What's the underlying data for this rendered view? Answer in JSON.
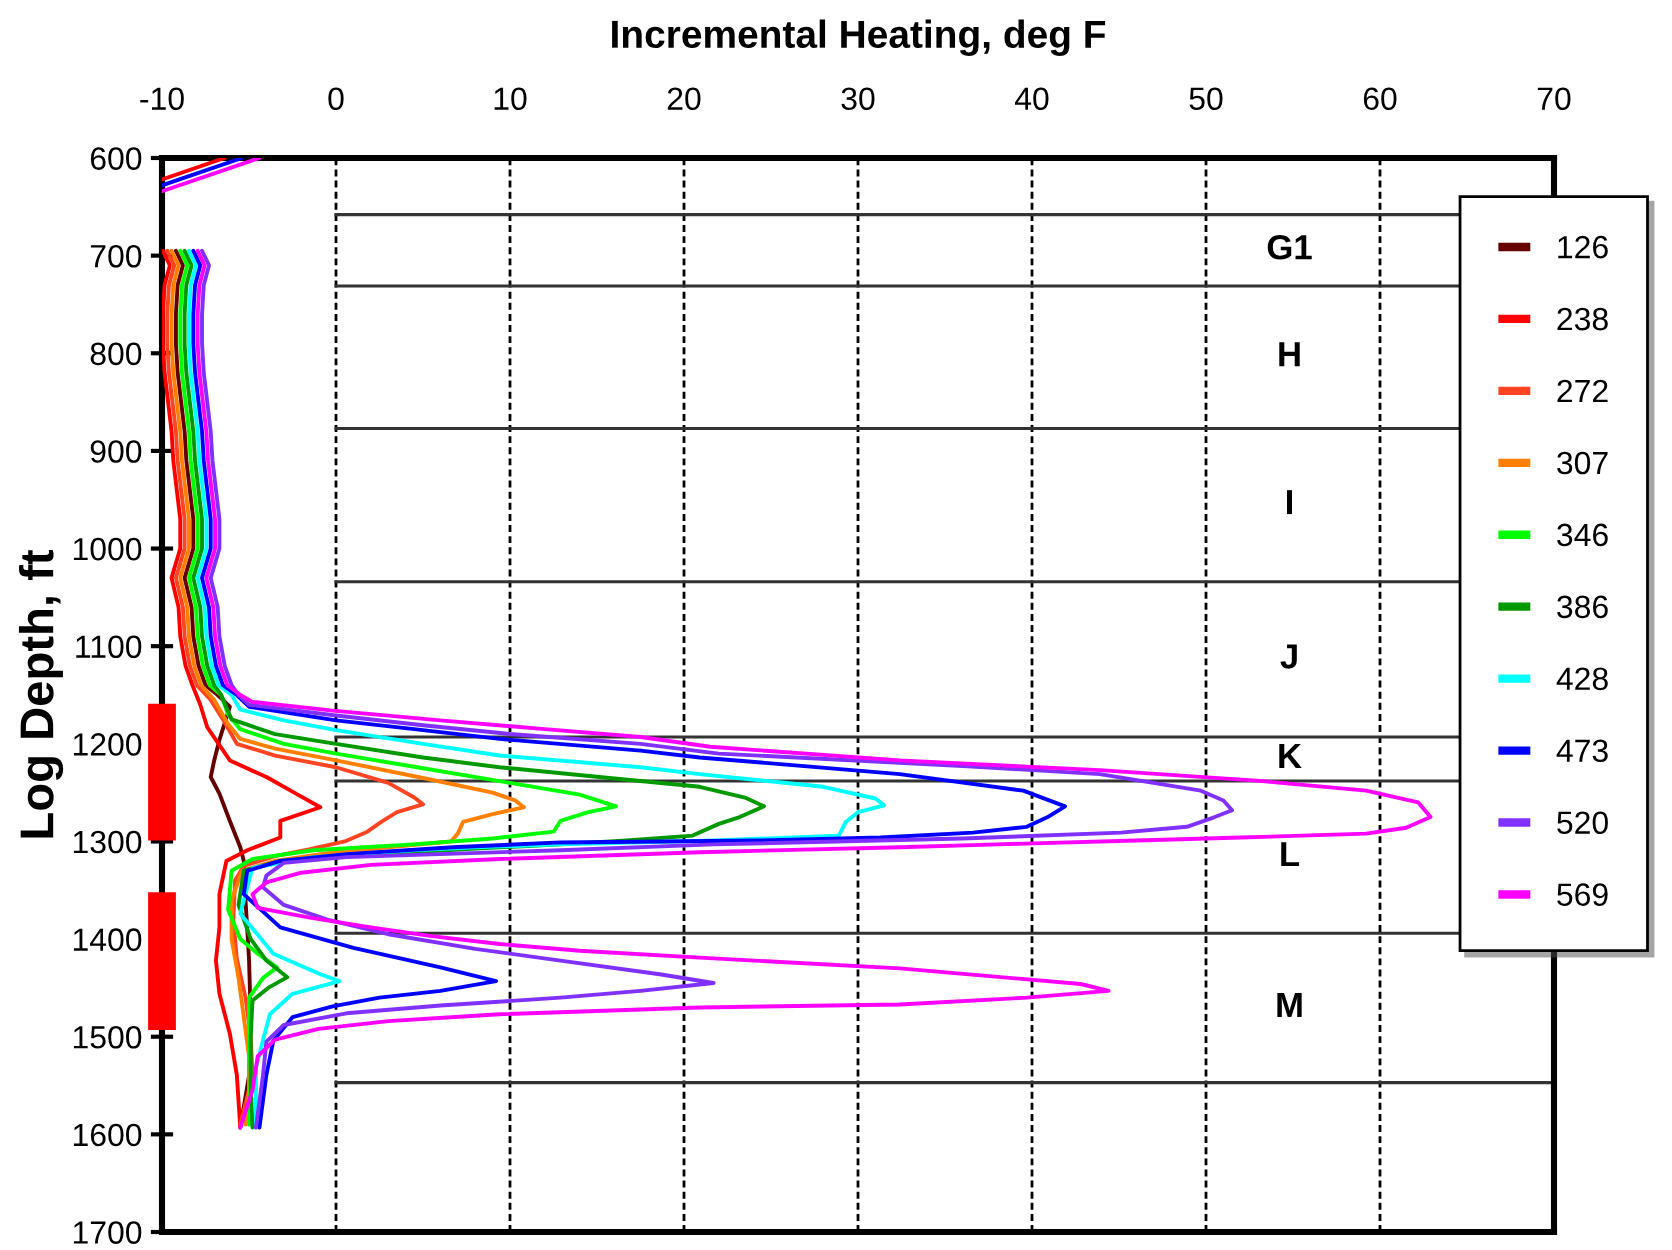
{
  "chart_data": {
    "type": "line",
    "xlabel": "Incremental Heating, deg F",
    "ylabel": "Log Depth, ft",
    "xlim": [
      -10,
      70
    ],
    "ylim": [
      1700,
      600
    ],
    "xticks": [
      -10,
      0,
      10,
      20,
      30,
      40,
      50,
      60,
      70
    ],
    "yticks": [
      600,
      700,
      800,
      900,
      1000,
      1100,
      1200,
      1300,
      1400,
      1500,
      1600,
      1700
    ],
    "grid": "x",
    "legend": "right",
    "ref_lines": [
      {
        "axis": "y",
        "value": 658
      },
      {
        "axis": "y",
        "value": 731
      },
      {
        "axis": "y",
        "value": 877
      },
      {
        "axis": "y",
        "value": 1034
      },
      {
        "axis": "y",
        "value": 1193
      },
      {
        "axis": "y",
        "value": 1238
      },
      {
        "axis": "y",
        "value": 1394
      },
      {
        "axis": "y",
        "value": 1547
      }
    ],
    "annotations": [
      "G1",
      "H",
      "I",
      "J",
      "K",
      "L",
      "M"
    ],
    "series": [
      {
        "name": "126",
        "color": "#660000",
        "x": [
          -9.2,
          -8.8,
          -9.1,
          -9.2,
          -9.2,
          -9.1,
          -8.9,
          -8.7,
          -8.6,
          -8.4,
          -8.2,
          -8.2,
          -8.7,
          -8.3,
          -8.2,
          -7.9,
          -7.5,
          -6.8,
          -6.1,
          -6.7,
          -7.0,
          -7.2,
          -6.7,
          -6.1,
          -5.5,
          -5.3,
          -5.2,
          -5.0,
          -4.9,
          -5.0,
          -5.5
        ],
        "values": [
          695,
          710,
          730,
          760,
          790,
          820,
          850,
          880,
          910,
          940,
          970,
          1000,
          1030,
          1060,
          1090,
          1120,
          1140,
          1150,
          1162,
          1196,
          1217,
          1234,
          1251,
          1279,
          1306,
          1320,
          1360,
          1420,
          1480,
          1540,
          1593
        ]
      },
      {
        "name": "238",
        "color": "#ff0000",
        "x": [
          -6.4,
          -10.0,
          null,
          -9.95,
          -9.55,
          -9.85,
          -9.95,
          -9.95,
          -9.85,
          -9.65,
          -9.45,
          -9.35,
          -9.15,
          -8.95,
          -8.95,
          -9.45,
          -9.05,
          -8.95,
          -8.65,
          -8.25,
          -7.8,
          -7.4,
          -6.1,
          -4.0,
          -2.3,
          -0.9,
          -3.2,
          -3.2,
          -5.1,
          -6.3,
          -6.7,
          -6.7,
          -6.9,
          -6.7,
          -6.1,
          -5.7,
          -5.5
        ],
        "values": [
          600,
          622,
          null,
          695,
          710,
          730,
          760,
          790,
          820,
          850,
          880,
          910,
          940,
          970,
          1000,
          1030,
          1060,
          1090,
          1120,
          1140,
          1160,
          1183,
          1217,
          1234,
          1251,
          1265,
          1279,
          1296,
          1309,
          1320,
          1354,
          1388,
          1422,
          1456,
          1497,
          1539,
          1593
        ]
      },
      {
        "name": "272",
        "color": "#ff4422",
        "x": [
          -9.7,
          -9.3,
          -9.6,
          -9.7,
          -9.7,
          -9.6,
          -9.4,
          -9.2,
          -9.1,
          -8.9,
          -8.7,
          -8.7,
          -9.2,
          -8.8,
          -8.7,
          -8.4,
          -8.0,
          -7.2,
          -6.5,
          -5.7,
          -3.5,
          0.0,
          3.0,
          4.5,
          5.0,
          3.5,
          2.6,
          1.8,
          0.5,
          -1.5,
          -3.5,
          -5.3,
          -5.8,
          -5.9,
          -5.7,
          -5.2,
          -4.9,
          -4.8,
          -5.5
        ],
        "values": [
          695,
          710,
          730,
          760,
          790,
          820,
          850,
          880,
          910,
          940,
          970,
          1000,
          1030,
          1060,
          1090,
          1120,
          1140,
          1155,
          1175,
          1200,
          1212,
          1224,
          1240,
          1255,
          1262,
          1270,
          1280,
          1290,
          1300,
          1308,
          1315,
          1325,
          1340,
          1380,
          1420,
          1460,
          1500,
          1540,
          1590
        ]
      },
      {
        "name": "307",
        "color": "#ff8000",
        "x": [
          -9.45,
          -9.05,
          -9.35,
          -9.45,
          -9.45,
          -9.35,
          -9.15,
          -8.95,
          -8.85,
          -8.65,
          -8.45,
          -8.45,
          -8.95,
          -8.55,
          -8.45,
          -8.15,
          -7.75,
          -7.0,
          -6.2,
          -5.5,
          -3.5,
          0.0,
          5.0,
          9.0,
          10.3,
          10.8,
          9.0,
          7.3,
          7.0,
          6.6,
          3.0,
          -0.5,
          -3.5,
          -5.4,
          -6.0,
          -6.0,
          -5.6,
          -5.3,
          -5.0,
          -5.0,
          -5.2
        ],
        "values": [
          695,
          710,
          730,
          760,
          790,
          820,
          850,
          880,
          910,
          940,
          970,
          1000,
          1030,
          1060,
          1090,
          1120,
          1140,
          1155,
          1180,
          1195,
          1205,
          1217,
          1235,
          1250,
          1258,
          1265,
          1272,
          1280,
          1292,
          1300,
          1306,
          1312,
          1320,
          1330,
          1360,
          1400,
          1440,
          1480,
          1520,
          1560,
          1590
        ]
      },
      {
        "name": "346",
        "color": "#00ff00",
        "x": [
          -8.95,
          -8.55,
          -8.85,
          -8.95,
          -8.95,
          -8.85,
          -8.65,
          -8.45,
          -8.35,
          -8.15,
          -7.95,
          -7.95,
          -8.45,
          -8.05,
          -7.95,
          -7.65,
          -7.25,
          -6.6,
          -6.2,
          -5.5,
          -3.0,
          0.0,
          5.0,
          10.0,
          14.0,
          16.1,
          14.5,
          12.9,
          12.5,
          9.0,
          4.4,
          -1.3,
          -4.8,
          -6.0,
          -6.2,
          -5.5,
          -4.5,
          -3.4,
          -4.2,
          -5.0,
          -5.0,
          -4.9,
          -5.0
        ],
        "values": [
          695,
          710,
          730,
          760,
          790,
          820,
          850,
          880,
          910,
          940,
          970,
          1000,
          1030,
          1060,
          1090,
          1120,
          1140,
          1150,
          1170,
          1185,
          1200,
          1210,
          1225,
          1240,
          1252,
          1264,
          1270,
          1279,
          1290,
          1297,
          1303,
          1309,
          1318,
          1330,
          1370,
          1400,
          1415,
          1429,
          1440,
          1460,
          1500,
          1540,
          1590
        ]
      },
      {
        "name": "386",
        "color": "#009900",
        "x": [
          -8.7,
          -8.3,
          -8.6,
          -8.7,
          -8.7,
          -8.6,
          -8.4,
          -8.2,
          -8.1,
          -7.9,
          -7.7,
          -7.7,
          -8.2,
          -7.8,
          -7.7,
          -7.4,
          -7.0,
          -6.6,
          -6.0,
          -3.5,
          0.0,
          5.0,
          9.4,
          16.3,
          20.9,
          23.5,
          24.6,
          23.2,
          22.0,
          20.5,
          16.7,
          12.9,
          8.3,
          2.5,
          -3.2,
          -5.3,
          -5.6,
          -4.9,
          -4.0,
          -2.8,
          -3.9,
          -4.8,
          -4.9,
          -4.9,
          -4.8
        ],
        "values": [
          695,
          710,
          730,
          760,
          790,
          820,
          850,
          880,
          910,
          940,
          970,
          1000,
          1030,
          1060,
          1090,
          1120,
          1140,
          1150,
          1175,
          1190,
          1200,
          1214,
          1224,
          1236,
          1244,
          1255,
          1264,
          1275,
          1282,
          1294,
          1299,
          1303,
          1307,
          1313,
          1320,
          1330,
          1365,
          1400,
          1422,
          1439,
          1450,
          1463,
          1500,
          1550,
          1593
        ]
      },
      {
        "name": "428",
        "color": "#00ffff",
        "x": [
          -8.45,
          -8.05,
          -8.35,
          -8.45,
          -8.45,
          -8.35,
          -8.15,
          -7.95,
          -7.85,
          -7.65,
          -7.45,
          -7.45,
          -7.95,
          -7.55,
          -7.45,
          -7.15,
          -6.75,
          -6.0,
          -5.5,
          -3.0,
          0.0,
          5.0,
          9.4,
          17.5,
          20.9,
          28.0,
          31.0,
          31.5,
          30.0,
          29.3,
          28.9,
          21.7,
          12.9,
          8.0,
          4.4,
          -1.3,
          -4.8,
          -5.5,
          -3.6,
          -0.9,
          0.2,
          -2.5,
          -3.8,
          -4.1,
          -4.6,
          -4.6
        ],
        "values": [
          695,
          710,
          730,
          760,
          790,
          820,
          850,
          880,
          910,
          940,
          970,
          1000,
          1030,
          1060,
          1090,
          1120,
          1140,
          1150,
          1165,
          1176,
          1186,
          1200,
          1212,
          1224,
          1231,
          1244,
          1256,
          1263,
          1270,
          1280,
          1294,
          1299,
          1303,
          1306,
          1309,
          1316,
          1327,
          1374,
          1415,
          1436,
          1443,
          1456,
          1477,
          1497,
          1532,
          1593
        ]
      },
      {
        "name": "473",
        "color": "#0000ff",
        "x": [
          -5.4,
          -10.0,
          null,
          -8.2,
          -7.8,
          -8.1,
          -8.2,
          -8.2,
          -8.1,
          -7.9,
          -7.7,
          -7.6,
          -7.4,
          -7.2,
          -7.2,
          -7.7,
          -7.3,
          -7.2,
          -6.9,
          -6.5,
          -5.7,
          -5.0,
          0.0,
          5.0,
          9.4,
          17.5,
          20.9,
          32.4,
          39.5,
          41.9,
          40.9,
          39.7,
          36.6,
          31.3,
          24.4,
          12.9,
          6.7,
          0.6,
          -3.2,
          -5.1,
          -5.3,
          -3.2,
          1.0,
          6.0,
          9.2,
          6.0,
          2.5,
          -0.2,
          -2.5,
          -3.6,
          -4.0,
          -4.4
        ],
        "values": [
          600,
          628,
          null,
          695,
          710,
          730,
          760,
          790,
          820,
          850,
          880,
          910,
          940,
          970,
          1000,
          1030,
          1060,
          1090,
          1120,
          1140,
          1150,
          1162,
          1176,
          1186,
          1195,
          1207,
          1214,
          1231,
          1248,
          1264,
          1275,
          1285,
          1291,
          1296,
          1299,
          1301,
          1306,
          1313,
          1320,
          1330,
          1354,
          1388,
          1409,
          1429,
          1443,
          1453,
          1460,
          1469,
          1480,
          1504,
          1539,
          1593
        ]
      },
      {
        "name": "520",
        "color": "#8030ff",
        "x": [
          -7.7,
          -7.3,
          -7.6,
          -7.7,
          -7.7,
          -7.6,
          -7.4,
          -7.2,
          -7.1,
          -6.9,
          -6.7,
          -6.7,
          -7.2,
          -6.8,
          -6.7,
          -6.4,
          -6.0,
          -5.6,
          -5.0,
          0.0,
          5.0,
          10.0,
          17.5,
          22.0,
          36.3,
          43.9,
          49.7,
          51.0,
          51.5,
          50.5,
          48.9,
          45.1,
          36.0,
          21.7,
          12.9,
          0.6,
          -3.0,
          -4.0,
          -4.2,
          -3.0,
          -0.5,
          3.0,
          8.0,
          12.9,
          18.6,
          21.7,
          17.5,
          12.9,
          6.0,
          0.6,
          -3.0,
          -4.0,
          -4.2,
          -4.6
        ],
        "values": [
          695,
          710,
          730,
          760,
          790,
          820,
          850,
          880,
          910,
          940,
          970,
          1000,
          1030,
          1060,
          1090,
          1120,
          1140,
          1150,
          1160,
          1171,
          1181,
          1190,
          1200,
          1210,
          1223,
          1231,
          1248,
          1258,
          1268,
          1275,
          1285,
          1291,
          1297,
          1303,
          1309,
          1316,
          1322,
          1335,
          1347,
          1365,
          1380,
          1395,
          1410,
          1422,
          1436,
          1445,
          1453,
          1460,
          1468,
          1476,
          1488,
          1505,
          1540,
          1593
        ]
      },
      {
        "name": "569",
        "color": "#ff00ff",
        "x": [
          -4.4,
          -10.0,
          null,
          -7.95,
          -7.55,
          -7.85,
          -7.95,
          -7.95,
          -7.85,
          -7.65,
          -7.45,
          -7.35,
          -7.15,
          -6.95,
          -6.95,
          -7.45,
          -7.05,
          -6.95,
          -6.65,
          -6.25,
          -5.5,
          -4.8,
          -0.2,
          6.0,
          12.0,
          17.5,
          21.5,
          32.4,
          43.9,
          53.1,
          59.2,
          62.2,
          62.9,
          61.5,
          59.2,
          52.0,
          46.0,
          38.0,
          32.4,
          20.9,
          9.4,
          2.0,
          -2.0,
          -4.0,
          -4.8,
          -4.5,
          -1.5,
          2.0,
          5.5,
          9.4,
          14.0,
          20.9,
          32.4,
          42.8,
          44.4,
          39.7,
          32.4,
          20.9,
          9.4,
          3.0,
          -1.0,
          -3.5,
          -4.5,
          -4.8,
          -5.5
        ],
        "values": [
          600,
          634,
          null,
          695,
          710,
          730,
          760,
          790,
          820,
          850,
          880,
          910,
          940,
          970,
          1000,
          1030,
          1060,
          1090,
          1120,
          1140,
          1150,
          1157,
          1166,
          1176,
          1185,
          1193,
          1203,
          1217,
          1227,
          1238,
          1248,
          1260,
          1275,
          1286,
          1292,
          1296,
          1299,
          1303,
          1306,
          1311,
          1318,
          1324,
          1332,
          1342,
          1354,
          1368,
          1378,
          1388,
          1397,
          1405,
          1412,
          1419,
          1430,
          1446,
          1453,
          1460,
          1467,
          1470,
          1477,
          1484,
          1492,
          1503,
          1520,
          1555,
          1593
        ]
      },
      {
        "color": "#ff0000",
        "x": [
          -10,
          -10
        ],
        "values": [
          1159,
          1299
        ]
      },
      {
        "color": "#ff0000",
        "x": [
          -10,
          -10
        ],
        "values": [
          1352,
          1493
        ]
      }
    ]
  }
}
